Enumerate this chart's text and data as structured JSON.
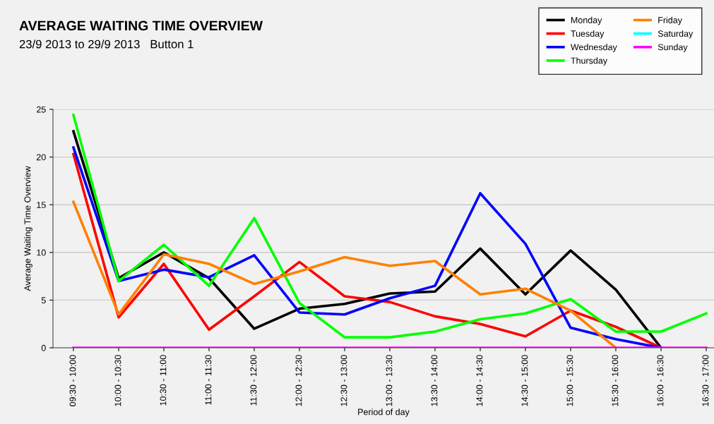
{
  "chart_data": {
    "type": "line",
    "title": "AVERAGE WAITING TIME OVERVIEW",
    "subtitle": "23/9 2013 to 29/9 2013   Button 1",
    "xlabel": "Period of day",
    "ylabel": "Average Waiting Time Overview",
    "categories": [
      "09:30 - 10:00",
      "10:00 - 10:30",
      "10:30 - 11:00",
      "11:00 - 11:30",
      "11:30 - 12:00",
      "12:00 - 12:30",
      "12:30 - 13:00",
      "13:00 - 13:30",
      "13:30 - 14:00",
      "14:00 - 14:30",
      "14:30 - 15:00",
      "15:00 - 15:30",
      "15:30 - 16:00",
      "16:00 - 16:30",
      "16:30 - 17:00"
    ],
    "series": [
      {
        "name": "Monday",
        "color": "#000000",
        "values": [
          22.7,
          7.3,
          10.0,
          7.3,
          2.0,
          4.1,
          4.6,
          5.7,
          5.9,
          10.4,
          5.6,
          10.2,
          6.1,
          0,
          null
        ]
      },
      {
        "name": "Tuesday",
        "color": "#ff0000",
        "values": [
          20.3,
          3.2,
          8.8,
          1.9,
          5.4,
          9.0,
          5.4,
          4.8,
          3.3,
          2.5,
          1.2,
          3.9,
          2.2,
          0,
          null
        ]
      },
      {
        "name": "Wednesday",
        "color": "#0000ff",
        "values": [
          21.0,
          7.0,
          8.2,
          7.4,
          9.7,
          3.7,
          3.5,
          5.2,
          6.5,
          16.2,
          10.9,
          2.1,
          0.9,
          0,
          null
        ]
      },
      {
        "name": "Thursday",
        "color": "#00ff00",
        "values": [
          24.4,
          7.0,
          10.8,
          6.5,
          13.6,
          4.7,
          1.1,
          1.1,
          1.7,
          3.0,
          3.6,
          5.1,
          1.7,
          1.7,
          3.6
        ]
      },
      {
        "name": "Friday",
        "color": "#ff8000",
        "values": [
          15.3,
          3.5,
          9.8,
          8.8,
          6.7,
          8.0,
          9.5,
          8.6,
          9.1,
          5.6,
          6.2,
          3.9,
          0,
          null,
          null
        ]
      },
      {
        "name": "Saturday",
        "color": "#00ffff",
        "values": [
          null,
          null,
          null,
          null,
          null,
          null,
          null,
          null,
          null,
          null,
          null,
          null,
          null,
          null,
          null
        ]
      },
      {
        "name": "Sunday",
        "color": "#ff00ff",
        "values": [
          0,
          0,
          0,
          0,
          0,
          0,
          0,
          0,
          0,
          0,
          0,
          0,
          0,
          0,
          0
        ]
      }
    ],
    "ylim": [
      0,
      25
    ],
    "yticks": [
      0,
      5,
      10,
      15,
      20,
      25
    ],
    "grid": "y",
    "legend": "top right",
    "marker": "none",
    "line_style": "solid"
  }
}
